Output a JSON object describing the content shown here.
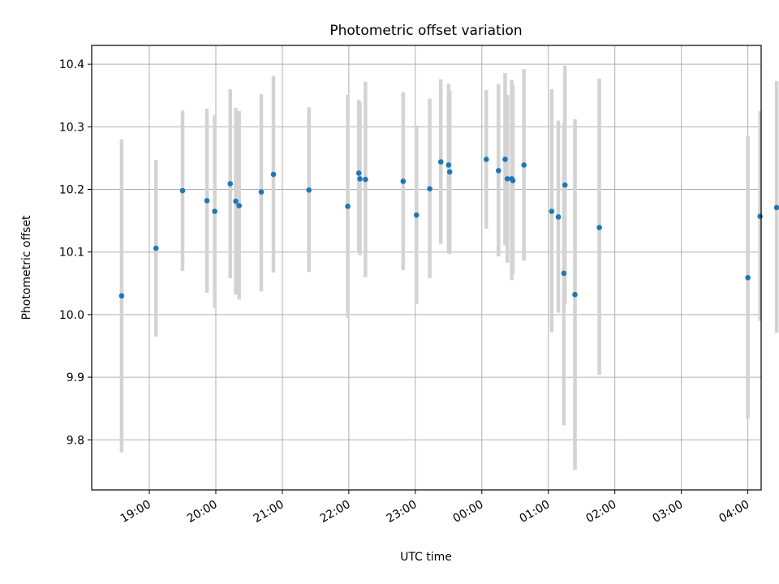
{
  "chart_data": {
    "type": "scatter",
    "title": "Photometric offset variation",
    "xlabel": "UTC time",
    "ylabel": "Photometric offset",
    "xlim": [
      "18:08",
      "04:12"
    ],
    "ylim": [
      9.72,
      10.43
    ],
    "grid": true,
    "x_ticks": [
      "19:00",
      "20:00",
      "21:00",
      "22:00",
      "23:00",
      "00:00",
      "01:00",
      "02:00",
      "03:00",
      "04:00"
    ],
    "y_ticks": [
      "9.8",
      "9.9",
      "10.0",
      "10.1",
      "10.2",
      "10.3",
      "10.4"
    ],
    "colors": {
      "marker": "#1f77b4",
      "errorbar": "#d3d3d3",
      "grid": "#b0b0b0"
    },
    "points": [
      {
        "t": "18:35",
        "y": 10.03,
        "err_low": 9.78,
        "err_high": 10.28
      },
      {
        "t": "19:06",
        "y": 10.106,
        "err_low": 9.965,
        "err_high": 10.247
      },
      {
        "t": "19:30",
        "y": 10.198,
        "err_low": 10.07,
        "err_high": 10.326
      },
      {
        "t": "19:52",
        "y": 10.182,
        "err_low": 10.035,
        "err_high": 10.329
      },
      {
        "t": "19:59",
        "y": 10.165,
        "err_low": 10.011,
        "err_high": 10.319
      },
      {
        "t": "20:13",
        "y": 10.209,
        "err_low": 10.058,
        "err_high": 10.36
      },
      {
        "t": "20:18",
        "y": 10.181,
        "err_low": 10.032,
        "err_high": 10.33
      },
      {
        "t": "20:21",
        "y": 10.174,
        "err_low": 10.024,
        "err_high": 10.325
      },
      {
        "t": "20:41",
        "y": 10.196,
        "err_low": 10.037,
        "err_high": 10.352
      },
      {
        "t": "20:52",
        "y": 10.224,
        "err_low": 10.067,
        "err_high": 10.381
      },
      {
        "t": "21:24",
        "y": 10.199,
        "err_low": 10.068,
        "err_high": 10.331
      },
      {
        "t": "21:59",
        "y": 10.173,
        "err_low": 9.995,
        "err_high": 10.351
      },
      {
        "t": "22:09",
        "y": 10.226,
        "err_low": 10.1,
        "err_high": 10.343
      },
      {
        "t": "22:10",
        "y": 10.217,
        "err_low": 10.095,
        "err_high": 10.339
      },
      {
        "t": "22:15",
        "y": 10.216,
        "err_low": 10.06,
        "err_high": 10.372
      },
      {
        "t": "22:49",
        "y": 10.213,
        "err_low": 10.071,
        "err_high": 10.355
      },
      {
        "t": "23:01",
        "y": 10.159,
        "err_low": 10.017,
        "err_high": 10.302
      },
      {
        "t": "23:13",
        "y": 10.201,
        "err_low": 10.058,
        "err_high": 10.345
      },
      {
        "t": "23:23",
        "y": 10.244,
        "err_low": 10.113,
        "err_high": 10.376
      },
      {
        "t": "23:30",
        "y": 10.239,
        "err_low": 10.098,
        "err_high": 10.369
      },
      {
        "t": "23:31",
        "y": 10.228,
        "err_low": 10.097,
        "err_high": 10.358
      },
      {
        "t": "00:04",
        "y": 10.248,
        "err_low": 10.137,
        "err_high": 10.359
      },
      {
        "t": "00:15",
        "y": 10.23,
        "err_low": 10.093,
        "err_high": 10.368
      },
      {
        "t": "00:21",
        "y": 10.248,
        "err_low": 10.111,
        "err_high": 10.386
      },
      {
        "t": "00:23",
        "y": 10.217,
        "err_low": 10.083,
        "err_high": 10.351
      },
      {
        "t": "00:27",
        "y": 10.217,
        "err_low": 10.055,
        "err_high": 10.375
      },
      {
        "t": "00:28",
        "y": 10.214,
        "err_low": 10.065,
        "err_high": 10.366
      },
      {
        "t": "00:38",
        "y": 10.239,
        "err_low": 10.086,
        "err_high": 10.392
      },
      {
        "t": "01:03",
        "y": 10.165,
        "err_low": 9.972,
        "err_high": 10.36
      },
      {
        "t": "01:09",
        "y": 10.156,
        "err_low": 10.003,
        "err_high": 10.31
      },
      {
        "t": "01:14",
        "y": 10.066,
        "err_low": 9.823,
        "err_high": 10.306
      },
      {
        "t": "01:15",
        "y": 10.207,
        "err_low": 10.018,
        "err_high": 10.398
      },
      {
        "t": "01:24",
        "y": 10.032,
        "err_low": 9.752,
        "err_high": 10.312
      },
      {
        "t": "01:46",
        "y": 10.139,
        "err_low": 9.904,
        "err_high": 10.377
      },
      {
        "t": "04:00",
        "y": 10.059,
        "err_low": 9.834,
        "err_high": 10.285
      },
      {
        "t": "04:11",
        "y": 10.157,
        "err_low": 9.99,
        "err_high": 10.325
      },
      {
        "t": "04:26",
        "y": 10.171,
        "err_low": 9.971,
        "err_high": 10.373
      }
    ]
  }
}
